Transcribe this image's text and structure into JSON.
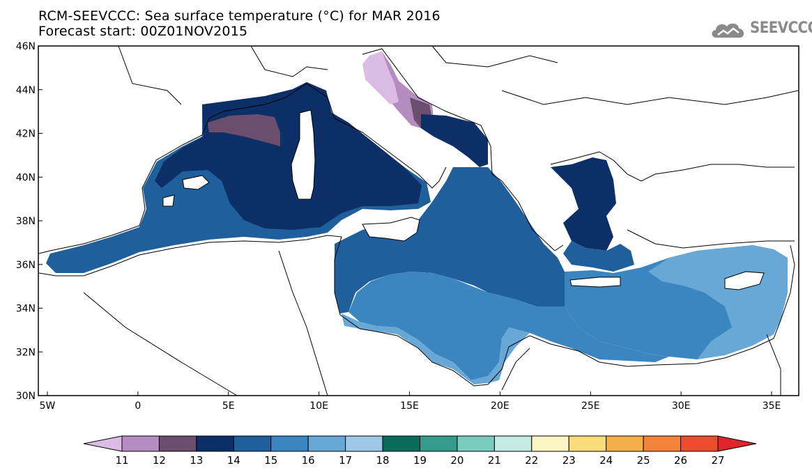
{
  "title": {
    "line1": "RCM-SEEVCCC: Sea surface temperature (°C) for MAR 2016",
    "line2": "Forecast start: 00Z01NOV2015"
  },
  "logo": {
    "text": "SEEVCCC",
    "icon": "cloud-icon"
  },
  "map": {
    "lon_range": [
      -5.5,
      36.5
    ],
    "lat_range": [
      30,
      46
    ],
    "lon_ticks": [
      "5W",
      "0",
      "5E",
      "10E",
      "15E",
      "20E",
      "25E",
      "30E",
      "35E"
    ],
    "lat_ticks": [
      "30N",
      "32N",
      "34N",
      "36N",
      "38N",
      "40N",
      "42N",
      "44N",
      "46N"
    ]
  },
  "colorbar": {
    "labels": [
      "11",
      "12",
      "13",
      "14",
      "15",
      "16",
      "17",
      "18",
      "19",
      "20",
      "21",
      "22",
      "23",
      "24",
      "25",
      "26",
      "27"
    ],
    "colors": [
      "#dcbce4",
      "#b48cc0",
      "#6b4e6e",
      "#0b2f66",
      "#1f5f9b",
      "#3b86c0",
      "#68a8d6",
      "#9ec8e6",
      "#0b6b5b",
      "#349a8c",
      "#78cbbd",
      "#c4e9e2",
      "#fbf6c4",
      "#fbdc7c",
      "#f6b04a",
      "#f4823a",
      "#ee4b2f",
      "#e0242a"
    ]
  }
}
